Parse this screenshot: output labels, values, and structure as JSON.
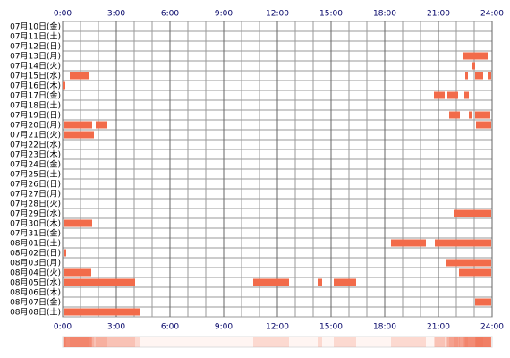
{
  "chart_data": {
    "type": "timeline",
    "color": "#f26b4a",
    "xlim": [
      0,
      24
    ],
    "xticks": [
      {
        "value": 0,
        "label": "0:00"
      },
      {
        "value": 3,
        "label": "3:00"
      },
      {
        "value": 6,
        "label": "6:00"
      },
      {
        "value": 9,
        "label": "9:00"
      },
      {
        "value": 12,
        "label": "12:00"
      },
      {
        "value": 15,
        "label": "15:00"
      },
      {
        "value": 18,
        "label": "18:00"
      },
      {
        "value": 21,
        "label": "21:00"
      },
      {
        "value": 24,
        "label": "24:00"
      }
    ],
    "days": [
      {
        "label": "07月10日(金)",
        "segments": []
      },
      {
        "label": "07月11日(土)",
        "segments": []
      },
      {
        "label": "07月12日(日)",
        "segments": []
      },
      {
        "label": "07月13日(月)",
        "segments": [
          [
            22.35,
            23.75
          ]
        ]
      },
      {
        "label": "07月14日(火)",
        "segments": [
          [
            22.85,
            23.05
          ]
        ]
      },
      {
        "label": "07月15日(水)",
        "segments": [
          [
            0.4,
            1.45
          ],
          [
            22.5,
            22.65
          ],
          [
            23.05,
            23.5
          ],
          [
            23.75,
            23.95
          ]
        ]
      },
      {
        "label": "07月16日(木)",
        "segments": [
          [
            0,
            0.15
          ]
        ]
      },
      {
        "label": "07月17日(金)",
        "segments": [
          [
            20.75,
            21.35
          ],
          [
            21.5,
            22.1
          ],
          [
            22.45,
            22.7
          ]
        ]
      },
      {
        "label": "07月18日(土)",
        "segments": []
      },
      {
        "label": "07月19日(日)",
        "segments": [
          [
            21.6,
            22.2
          ],
          [
            22.7,
            22.9
          ],
          [
            23.05,
            23.9
          ]
        ]
      },
      {
        "label": "07月20日(月)",
        "segments": [
          [
            0.05,
            1.65
          ],
          [
            1.85,
            2.5
          ],
          [
            23.1,
            23.95
          ]
        ]
      },
      {
        "label": "07月21日(火)",
        "segments": [
          [
            0.05,
            1.75
          ]
        ]
      },
      {
        "label": "07月22日(水)",
        "segments": []
      },
      {
        "label": "07月23日(木)",
        "segments": []
      },
      {
        "label": "07月24日(金)",
        "segments": []
      },
      {
        "label": "07月25日(土)",
        "segments": []
      },
      {
        "label": "07月26日(日)",
        "segments": []
      },
      {
        "label": "07月27日(月)",
        "segments": []
      },
      {
        "label": "07月28日(火)",
        "segments": []
      },
      {
        "label": "07月29日(水)",
        "segments": [
          [
            21.85,
            23.95
          ]
        ]
      },
      {
        "label": "07月30日(木)",
        "segments": [
          [
            0.05,
            1.65
          ]
        ]
      },
      {
        "label": "07月31日(金)",
        "segments": []
      },
      {
        "label": "08月01日(土)",
        "segments": [
          [
            18.35,
            20.3
          ],
          [
            20.8,
            23.95
          ]
        ]
      },
      {
        "label": "08月02日(日)",
        "segments": [
          [
            0.05,
            0.2
          ]
        ]
      },
      {
        "label": "08月03日(月)",
        "segments": [
          [
            21.4,
            23.95
          ]
        ]
      },
      {
        "label": "08月04日(火)",
        "segments": [
          [
            0.1,
            1.6
          ],
          [
            22.15,
            23.95
          ]
        ]
      },
      {
        "label": "08月05日(水)",
        "segments": [
          [
            0.05,
            4.05
          ],
          [
            10.65,
            12.65
          ],
          [
            14.25,
            14.5
          ],
          [
            15.15,
            16.4
          ]
        ]
      },
      {
        "label": "08月06日(木)",
        "segments": []
      },
      {
        "label": "08月07日(金)",
        "segments": [
          [
            23.05,
            23.95
          ]
        ]
      },
      {
        "label": "08月08日(土)",
        "segments": [
          [
            0.05,
            4.35
          ]
        ]
      }
    ]
  }
}
